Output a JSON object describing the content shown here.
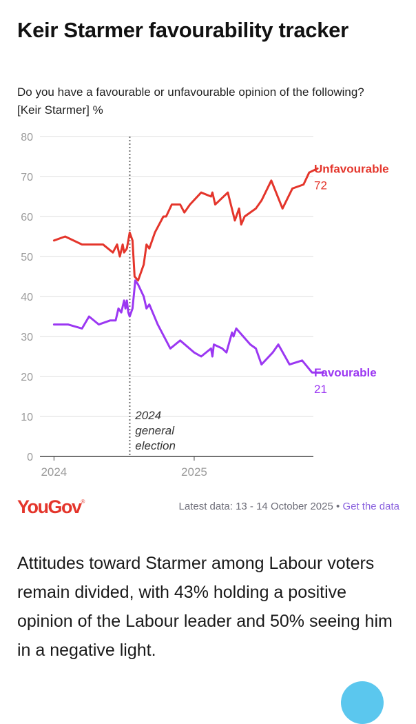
{
  "header": {
    "title": "Keir Starmer favourability tracker",
    "subtitle": "Do you have a favourable or unfavourable opinion of the following? [Keir Starmer] %"
  },
  "chart_data": {
    "type": "line",
    "title": "Keir Starmer favourability tracker",
    "ylim": [
      0,
      80
    ],
    "yticks": [
      0,
      10,
      20,
      30,
      40,
      50,
      60,
      70,
      80
    ],
    "x_axis": {
      "range": [
        2023.9,
        2025.85
      ],
      "ticks": [
        {
          "value": 2024.0,
          "label": "2024"
        },
        {
          "value": 2025.0,
          "label": "2025"
        }
      ]
    },
    "grid": true,
    "annotation": {
      "x": 2024.54,
      "lines": [
        "2024",
        "general",
        "election"
      ]
    },
    "series": [
      {
        "name": "Unfavourable",
        "color": "#e4352b",
        "last_value": "72",
        "points": [
          [
            2024.0,
            54
          ],
          [
            2024.08,
            55
          ],
          [
            2024.2,
            53
          ],
          [
            2024.35,
            53
          ],
          [
            2024.42,
            51
          ],
          [
            2024.45,
            53
          ],
          [
            2024.47,
            50
          ],
          [
            2024.49,
            53
          ],
          [
            2024.5,
            51
          ],
          [
            2024.52,
            52
          ],
          [
            2024.54,
            56
          ],
          [
            2024.56,
            54
          ],
          [
            2024.575,
            45
          ],
          [
            2024.6,
            44
          ],
          [
            2024.64,
            48
          ],
          [
            2024.66,
            53
          ],
          [
            2024.68,
            52
          ],
          [
            2024.72,
            56
          ],
          [
            2024.78,
            60
          ],
          [
            2024.8,
            60
          ],
          [
            2024.84,
            63
          ],
          [
            2024.9,
            63
          ],
          [
            2024.93,
            61
          ],
          [
            2024.97,
            63
          ],
          [
            2025.05,
            66
          ],
          [
            2025.12,
            65
          ],
          [
            2025.13,
            66
          ],
          [
            2025.15,
            63
          ],
          [
            2025.24,
            66
          ],
          [
            2025.29,
            59
          ],
          [
            2025.32,
            62
          ],
          [
            2025.335,
            58
          ],
          [
            2025.36,
            60
          ],
          [
            2025.44,
            62
          ],
          [
            2025.48,
            64
          ],
          [
            2025.55,
            69
          ],
          [
            2025.63,
            62
          ],
          [
            2025.7,
            67
          ],
          [
            2025.78,
            68
          ],
          [
            2025.82,
            71
          ],
          [
            2025.88,
            72
          ]
        ]
      },
      {
        "name": "Favourable",
        "color": "#9b37f2",
        "last_value": "21",
        "points": [
          [
            2024.0,
            33
          ],
          [
            2024.1,
            33
          ],
          [
            2024.2,
            32
          ],
          [
            2024.25,
            35
          ],
          [
            2024.32,
            33
          ],
          [
            2024.4,
            34
          ],
          [
            2024.44,
            34
          ],
          [
            2024.46,
            37
          ],
          [
            2024.48,
            36
          ],
          [
            2024.5,
            39
          ],
          [
            2024.51,
            37
          ],
          [
            2024.52,
            39
          ],
          [
            2024.53,
            36
          ],
          [
            2024.54,
            35
          ],
          [
            2024.56,
            37
          ],
          [
            2024.58,
            44
          ],
          [
            2024.6,
            43
          ],
          [
            2024.64,
            40
          ],
          [
            2024.66,
            37
          ],
          [
            2024.68,
            38
          ],
          [
            2024.74,
            33
          ],
          [
            2024.83,
            27
          ],
          [
            2024.9,
            29
          ],
          [
            2025.0,
            26
          ],
          [
            2025.05,
            25
          ],
          [
            2025.12,
            27
          ],
          [
            2025.13,
            25
          ],
          [
            2025.14,
            28
          ],
          [
            2025.2,
            27
          ],
          [
            2025.23,
            26
          ],
          [
            2025.27,
            31
          ],
          [
            2025.28,
            30
          ],
          [
            2025.3,
            32
          ],
          [
            2025.4,
            28
          ],
          [
            2025.44,
            27
          ],
          [
            2025.48,
            23
          ],
          [
            2025.56,
            26
          ],
          [
            2025.6,
            28
          ],
          [
            2025.68,
            23
          ],
          [
            2025.77,
            24
          ],
          [
            2025.84,
            21
          ],
          [
            2025.92,
            21
          ]
        ]
      }
    ]
  },
  "footer": {
    "logo": "YouGov",
    "latest": "Latest data: 13 - 14 October 2025",
    "separator": " • ",
    "link": "Get the data"
  },
  "article": {
    "text": "Attitudes toward Starmer among Labour voters remain divided, with 43% holding a positive opinion of the Labour leader and 50% seeing him in a negative light."
  },
  "colors": {
    "accent_red": "#e4352b",
    "accent_purple": "#9b37f2",
    "link": "#8a62de",
    "fab": "#5bc7ee"
  }
}
